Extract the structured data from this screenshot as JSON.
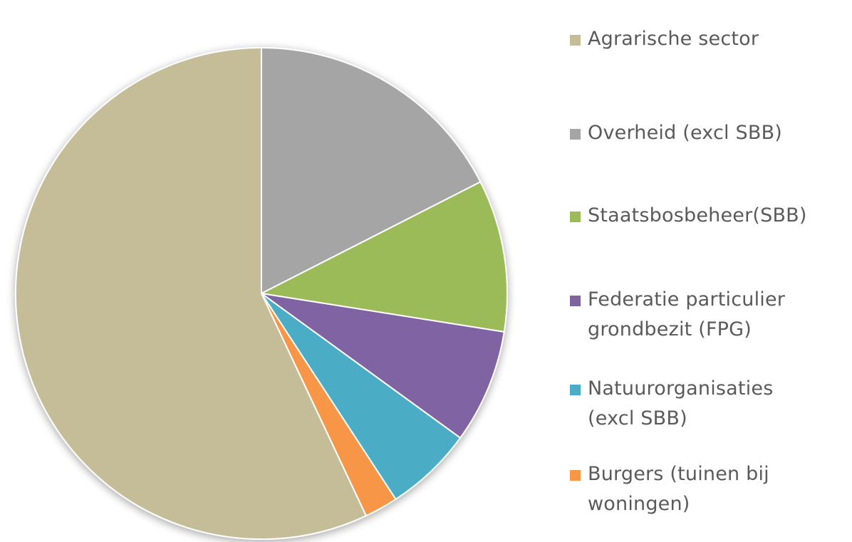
{
  "chart_data": {
    "type": "pie",
    "title": "",
    "start_angle_deg": 0,
    "direction": "clockwise",
    "legend_position": "right",
    "slices": [
      {
        "label": "Overheid (excl SBB)",
        "value": 17.5,
        "color": "#A5A5A5"
      },
      {
        "label": "Staatsbosbeheer(SBB)",
        "value": 10.0,
        "color": "#9BBB59"
      },
      {
        "label": "Federatie particulier grondbezit (FPG)",
        "value": 7.5,
        "color": "#8064A2"
      },
      {
        "label": "Natuurorganisaties (excl SBB)",
        "value": 5.8,
        "color": "#4BACC6"
      },
      {
        "label": "Burgers (tuinen bij woningen)",
        "value": 2.2,
        "color": "#F79646"
      },
      {
        "label": "Agrarische sector",
        "value": 57.0,
        "color": "#C4BD97"
      }
    ],
    "legend": [
      {
        "label": "Agrarische sector",
        "color": "#C4BD97"
      },
      {
        "label": "Overheid (excl SBB)",
        "color": "#A5A5A5"
      },
      {
        "label": "Staatsbosbeheer(SBB)",
        "color": "#9BBB59"
      },
      {
        "label": "Federatie particulier grondbezit (FPG)",
        "color": "#8064A2"
      },
      {
        "label": "Natuurorganisaties (excl SBB)",
        "color": "#4BACC6"
      },
      {
        "label": "Burgers (tuinen bij woningen)",
        "color": "#F79646"
      }
    ]
  }
}
